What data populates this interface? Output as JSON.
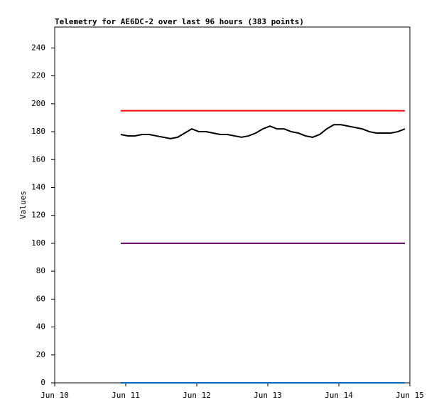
{
  "chart_data": {
    "type": "line",
    "title": "Telemetry for AE6DC-2 over last 96 hours (383 points)",
    "ylabel": "Values",
    "x": [
      10.93,
      11.03,
      11.13,
      11.23,
      11.33,
      11.43,
      11.53,
      11.63,
      11.73,
      11.83,
      11.93,
      12.03,
      12.13,
      12.23,
      12.33,
      12.43,
      12.53,
      12.63,
      12.73,
      12.83,
      12.93,
      13.03,
      13.13,
      13.23,
      13.33,
      13.43,
      13.53,
      13.63,
      13.73,
      13.83,
      13.93,
      14.03,
      14.13,
      14.23,
      14.33,
      14.43,
      14.53,
      14.63,
      14.73,
      14.83,
      14.93
    ],
    "series": [
      {
        "color": "#ff0000",
        "values": [
          195,
          195,
          195,
          195,
          195,
          195,
          195,
          195,
          195,
          195,
          195,
          195,
          195,
          195,
          195,
          195,
          195,
          195,
          195,
          195,
          195,
          195,
          195,
          195,
          195,
          195,
          195,
          195,
          195,
          195,
          195,
          195,
          195,
          195,
          195,
          195,
          195,
          195,
          195,
          195,
          195
        ]
      },
      {
        "color": "#000000",
        "values": [
          178,
          177,
          177,
          178,
          178,
          177,
          176,
          175,
          176,
          179,
          182,
          180,
          180,
          179,
          178,
          178,
          177,
          176,
          177,
          179,
          182,
          184,
          182,
          182,
          180,
          179,
          177,
          176,
          178,
          182,
          185,
          185,
          184,
          183,
          182,
          180,
          179,
          179,
          179,
          180,
          182
        ]
      },
      {
        "color": "#660066",
        "values": [
          100,
          100,
          100,
          100,
          100,
          100,
          100,
          100,
          100,
          100,
          100,
          100,
          100,
          100,
          100,
          100,
          100,
          100,
          100,
          100,
          100,
          100,
          100,
          100,
          100,
          100,
          100,
          100,
          100,
          100,
          100,
          100,
          100,
          100,
          100,
          100,
          100,
          100,
          100,
          100,
          100
        ]
      },
      {
        "color": "#0066bb",
        "values": [
          0,
          0,
          0,
          0,
          0,
          0,
          0,
          0,
          0,
          0,
          0,
          0,
          0,
          0,
          0,
          0,
          0,
          0,
          0,
          0,
          0,
          0,
          0,
          0,
          0,
          0,
          0,
          0,
          0,
          0,
          0,
          0,
          0,
          0,
          0,
          0,
          0,
          0,
          0,
          0,
          0
        ]
      }
    ],
    "xlim": [
      10,
      15
    ],
    "xticks": [
      {
        "value": 10,
        "label": "Jun 10"
      },
      {
        "value": 11,
        "label": "Jun 11"
      },
      {
        "value": 12,
        "label": "Jun 12"
      },
      {
        "value": 13,
        "label": "Jun 13"
      },
      {
        "value": 14,
        "label": "Jun 14"
      },
      {
        "value": 15,
        "label": "Jun 15"
      }
    ],
    "ylim": [
      0,
      255
    ],
    "yticks": [
      0,
      20,
      40,
      60,
      80,
      100,
      120,
      140,
      160,
      180,
      200,
      220,
      240
    ]
  }
}
